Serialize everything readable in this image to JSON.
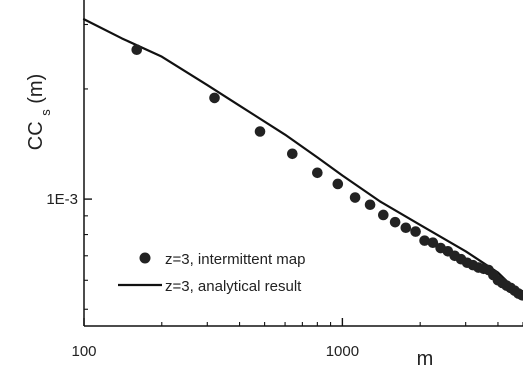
{
  "chart_data": {
    "type": "scatter",
    "title": "",
    "xlabel": "m",
    "ylabel_main": "CC",
    "ylabel_sub": "s",
    "ylabel_suffix": "(m)",
    "x_scale": "log",
    "y_scale": "log",
    "xlim": [
      100,
      5000
    ],
    "ylim": [
      0.00045,
      0.0035
    ],
    "x_ticks": [
      {
        "value": 100,
        "label": "100"
      },
      {
        "value": 1000,
        "label": "1000"
      }
    ],
    "y_ticks": [
      {
        "value": 0.001,
        "label": "1E-3"
      }
    ],
    "grid": false,
    "legend_position": "lower-left",
    "colors": {
      "series": "#222222",
      "axis": "#111111"
    },
    "series": [
      {
        "name": "z=3, intermittent map",
        "type": "scatter",
        "marker": "circle",
        "x": [
          160,
          320,
          480,
          640,
          800,
          960,
          1120,
          1280,
          1440,
          1600,
          1760,
          1920,
          2080,
          2240,
          2400,
          2560,
          2720,
          2880,
          3040,
          3200,
          3360,
          3520,
          3680,
          3840,
          4000,
          4160,
          4320,
          4480,
          4640,
          4800,
          4960
        ],
        "y": [
          0.00256,
          0.00189,
          0.00153,
          0.00133,
          0.00118,
          0.0011,
          0.00101,
          0.000965,
          0.000905,
          0.000865,
          0.000835,
          0.000815,
          0.00077,
          0.00076,
          0.000735,
          0.00072,
          0.0007,
          0.000685,
          0.00067,
          0.00066,
          0.00065,
          0.000645,
          0.00064,
          0.00062,
          0.0006,
          0.00059,
          0.00058,
          0.000572,
          0.000562,
          0.000552,
          0.000546
        ]
      },
      {
        "name": "z=3, analytical result",
        "type": "line",
        "x": [
          100,
          140,
          200,
          300,
          400,
          600,
          800,
          1000,
          1400,
          2000,
          3000,
          4000,
          5000
        ],
        "y": [
          0.0031,
          0.00275,
          0.00245,
          0.00205,
          0.0018,
          0.0015,
          0.0013,
          0.00116,
          0.000985,
          0.00085,
          0.00072,
          0.00063,
          0.00054
        ]
      }
    ]
  }
}
